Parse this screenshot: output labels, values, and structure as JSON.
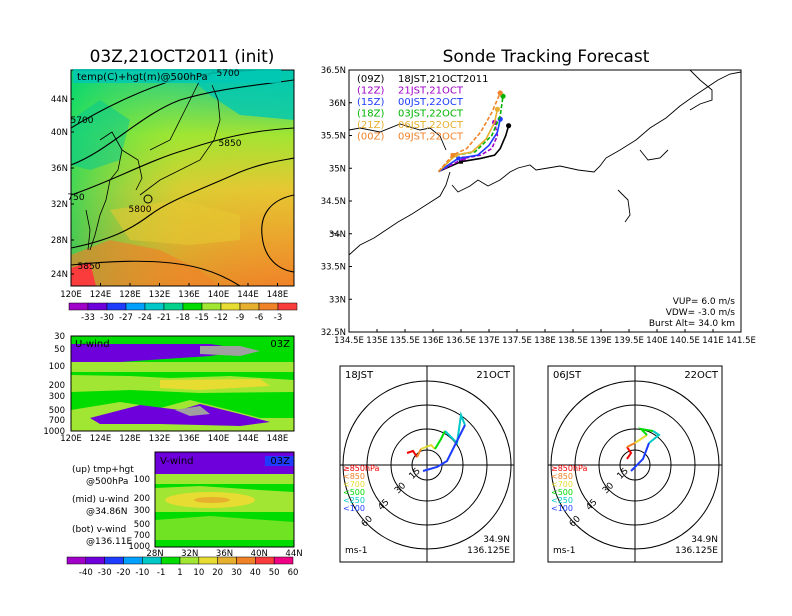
{
  "left": {
    "title": "03Z,21OCT2011 (init)",
    "top_label": "temp(C)+hgt(m)@500hPa",
    "contour_labels": [
      "5700",
      "5700",
      "5850",
      "5800",
      "5850",
      "750"
    ],
    "lon_ticks": [
      "120E",
      "124E",
      "128E",
      "132E",
      "136E",
      "140E",
      "144E",
      "148E"
    ],
    "lat_ticks": [
      "44N",
      "40N",
      "36N",
      "32N",
      "28N",
      "24N"
    ],
    "temp_colorbar": {
      "labels": [
        "-33",
        "-30",
        "-27",
        "-24",
        "-21",
        "-18",
        "-15",
        "-12",
        "-9",
        "-6",
        "-3"
      ],
      "colors": [
        "#a000c8",
        "#6e00dc",
        "#1e3cff",
        "#00a0ff",
        "#00c8c8",
        "#00d28c",
        "#00dc00",
        "#a0e632",
        "#e6dc32",
        "#e6af2d",
        "#f08228",
        "#fa3c3c"
      ]
    },
    "uwind": {
      "name": "U-wind",
      "time": "03Z",
      "y_ticks": [
        "30",
        "50",
        "100",
        "200",
        "300",
        "500",
        "700",
        "1000"
      ],
      "x_ticks": [
        "120E",
        "124E",
        "128E",
        "132E",
        "136E",
        "140E",
        "144E",
        "148E"
      ]
    },
    "vwind": {
      "name": "V-wind",
      "time": "03Z",
      "y_ticks": [
        "100",
        "200",
        "300",
        "500",
        "700",
        "1000"
      ],
      "x_ticks": [
        "28N",
        "32N",
        "36N",
        "40N",
        "44N"
      ]
    },
    "legend_lines": [
      [
        "(up) tmp+hgt",
        "@500hPa"
      ],
      [
        "(mid) u-wind",
        "@34.86N"
      ],
      [
        "(bot) v-wind",
        "@136.11E"
      ]
    ],
    "wind_colorbar": {
      "labels": [
        "-40",
        "-30",
        "-20",
        "-10",
        "-1",
        "1",
        "10",
        "20",
        "30",
        "40",
        "50",
        "60"
      ],
      "colors": [
        "#a000c8",
        "#6e00dc",
        "#1e3cff",
        "#00a0ff",
        "#00c8c8",
        "#00dc00",
        "#a0e632",
        "#e6dc32",
        "#e6af2d",
        "#f08228",
        "#fa3c3c",
        "#f00082"
      ]
    }
  },
  "main": {
    "title": "Sonde Tracking Forecast",
    "lon_ticks": [
      "134.5E",
      "135E",
      "135.5E",
      "136E",
      "136.5E",
      "137E",
      "137.5E",
      "138E",
      "138.5E",
      "139E",
      "139.5E",
      "140E",
      "140.5E",
      "141E",
      "141.5E"
    ],
    "lat_ticks": [
      "36.5N",
      "36N",
      "35.5N",
      "35N",
      "34.5N",
      "34N",
      "33.5N",
      "33N",
      "32.5N"
    ],
    "launch_legend": [
      {
        "utc": "(09Z)",
        "jst": "18JST,21OCT2011",
        "color": "#000000"
      },
      {
        "utc": "(12Z)",
        "jst": "21JST,21OCT",
        "color": "#a000c8"
      },
      {
        "utc": "(15Z)",
        "jst": "00JST,22OCT",
        "color": "#1e3cff"
      },
      {
        "utc": "(18Z)",
        "jst": "03JST,22OCT",
        "color": "#00b400"
      },
      {
        "utc": "(21Z)",
        "jst": "06JST,22OCT",
        "color": "#e6af2d"
      },
      {
        "utc": "(00Z)",
        "jst": "09JST,22OCT",
        "color": "#f08228"
      }
    ],
    "params": [
      "VUP= 6.0 m/s",
      "VDW= -3.0 m/s",
      "Burst Alt= 34.0 km"
    ]
  },
  "hodographs": [
    {
      "time": "18JST",
      "date": "21OCT",
      "loc": [
        "34.9N",
        "136.125E"
      ],
      "unit": "ms-1"
    },
    {
      "time": "06JST",
      "date": "22OCT",
      "loc": [
        "34.9N",
        "136.125E"
      ],
      "unit": "ms-1"
    }
  ],
  "hodo_rings": [
    "15",
    "30",
    "45",
    "60"
  ],
  "hodo_levels": [
    {
      "label": "≥850hPa",
      "color": "#f00000"
    },
    {
      "label": "<850",
      "color": "#f08228"
    },
    {
      "label": "<700",
      "color": "#e6dc32"
    },
    {
      "label": "<500",
      "color": "#00dc00"
    },
    {
      "label": "<250",
      "color": "#00c8c8"
    },
    {
      "label": "<100",
      "color": "#1e3cff"
    }
  ],
  "chart_data": [
    {
      "type": "heatmap",
      "title": "03Z,21OCT2011 (init)",
      "subtitle": "temp(C)+hgt(m)@500hPa",
      "xlim": [
        120,
        150
      ],
      "ylim": [
        22,
        48
      ],
      "contour_levels": [
        5700,
        5750,
        5800,
        5850
      ],
      "color_levels": [
        -33,
        -30,
        -27,
        -24,
        -21,
        -18,
        -15,
        -12,
        -9,
        -6,
        -3
      ]
    },
    {
      "type": "line",
      "title": "Sonde Tracking Forecast",
      "xlim": [
        134.5,
        141.5
      ],
      "ylim": [
        32.5,
        36.5
      ],
      "series": [
        {
          "name": "(09Z) 18JST,21OCT2011",
          "x": [
            136.1,
            136.5,
            136.85,
            137.1,
            137.2,
            137.3,
            137.35
          ],
          "y": [
            34.95,
            35.1,
            35.15,
            35.2,
            35.3,
            35.5,
            35.65
          ]
        },
        {
          "name": "(12Z) 21JST,21OCT",
          "x": [
            136.1,
            136.55,
            136.85,
            137.05,
            137.15,
            137.1
          ],
          "y": [
            34.95,
            35.15,
            35.2,
            35.3,
            35.5,
            35.7
          ]
        },
        {
          "name": "(15Z) 00JST,22OCT",
          "x": [
            136.1,
            136.45,
            136.8,
            137.0,
            137.15,
            137.2
          ],
          "y": [
            34.95,
            35.15,
            35.2,
            35.35,
            35.55,
            35.75
          ]
        },
        {
          "name": "(18Z) 03JST,22OCT",
          "x": [
            136.1,
            136.4,
            136.75,
            137.05,
            137.2,
            137.25
          ],
          "y": [
            34.95,
            35.2,
            35.25,
            35.5,
            35.8,
            36.1
          ]
        },
        {
          "name": "(21Z) 06JST,22OCT",
          "x": [
            136.1,
            136.4,
            136.7,
            136.95,
            137.1,
            137.15
          ],
          "y": [
            34.95,
            35.2,
            35.25,
            35.45,
            35.7,
            35.9
          ]
        },
        {
          "name": "(00Z) 09JST,22OCT",
          "x": [
            136.1,
            136.35,
            136.6,
            136.85,
            137.05,
            137.2
          ],
          "y": [
            34.95,
            35.2,
            35.3,
            35.55,
            35.85,
            36.15
          ]
        }
      ],
      "annotations": [
        "VUP= 6.0 m/s",
        "VDW= -3.0 m/s",
        "Burst Alt= 34.0 km"
      ]
    }
  ]
}
